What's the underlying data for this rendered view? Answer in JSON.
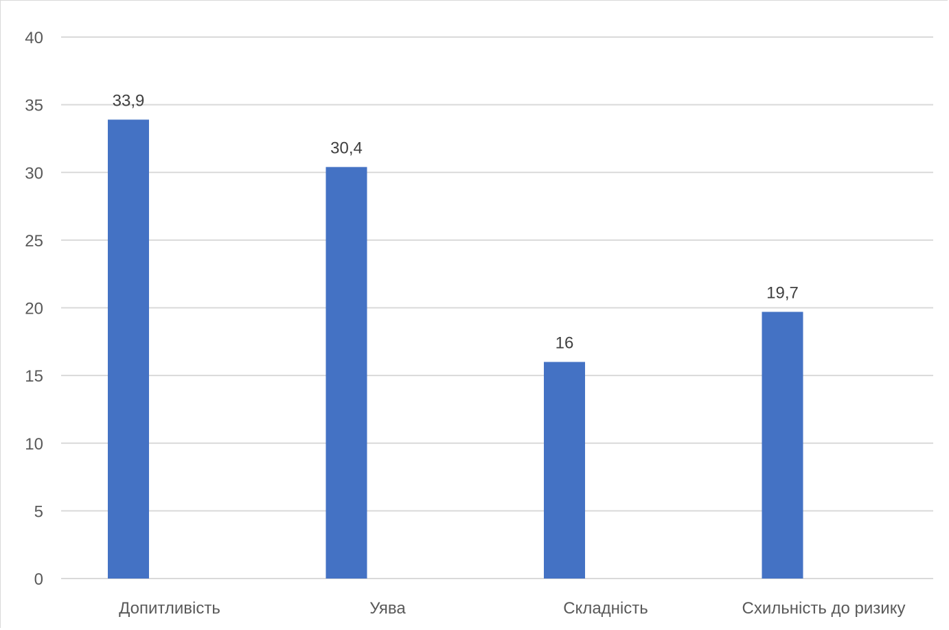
{
  "chart_data": {
    "type": "bar",
    "categories": [
      "Допитливість",
      "Уява",
      "Складність",
      "Схильність до ризику"
    ],
    "values": [
      33.9,
      30.4,
      16,
      19.7
    ],
    "data_labels": [
      "33,9",
      "30,4",
      "16",
      "19,7"
    ],
    "title": "",
    "xlabel": "",
    "ylabel": "",
    "ylim": [
      0,
      40
    ],
    "yticks": [
      0,
      5,
      10,
      15,
      20,
      25,
      30,
      35,
      40
    ],
    "ytick_labels": [
      "0",
      "5",
      "10",
      "15",
      "20",
      "25",
      "30",
      "35",
      "40"
    ],
    "grid": true,
    "legend": "none",
    "bar_color": "#4472C4",
    "grid_color": "#d9d9d9"
  }
}
